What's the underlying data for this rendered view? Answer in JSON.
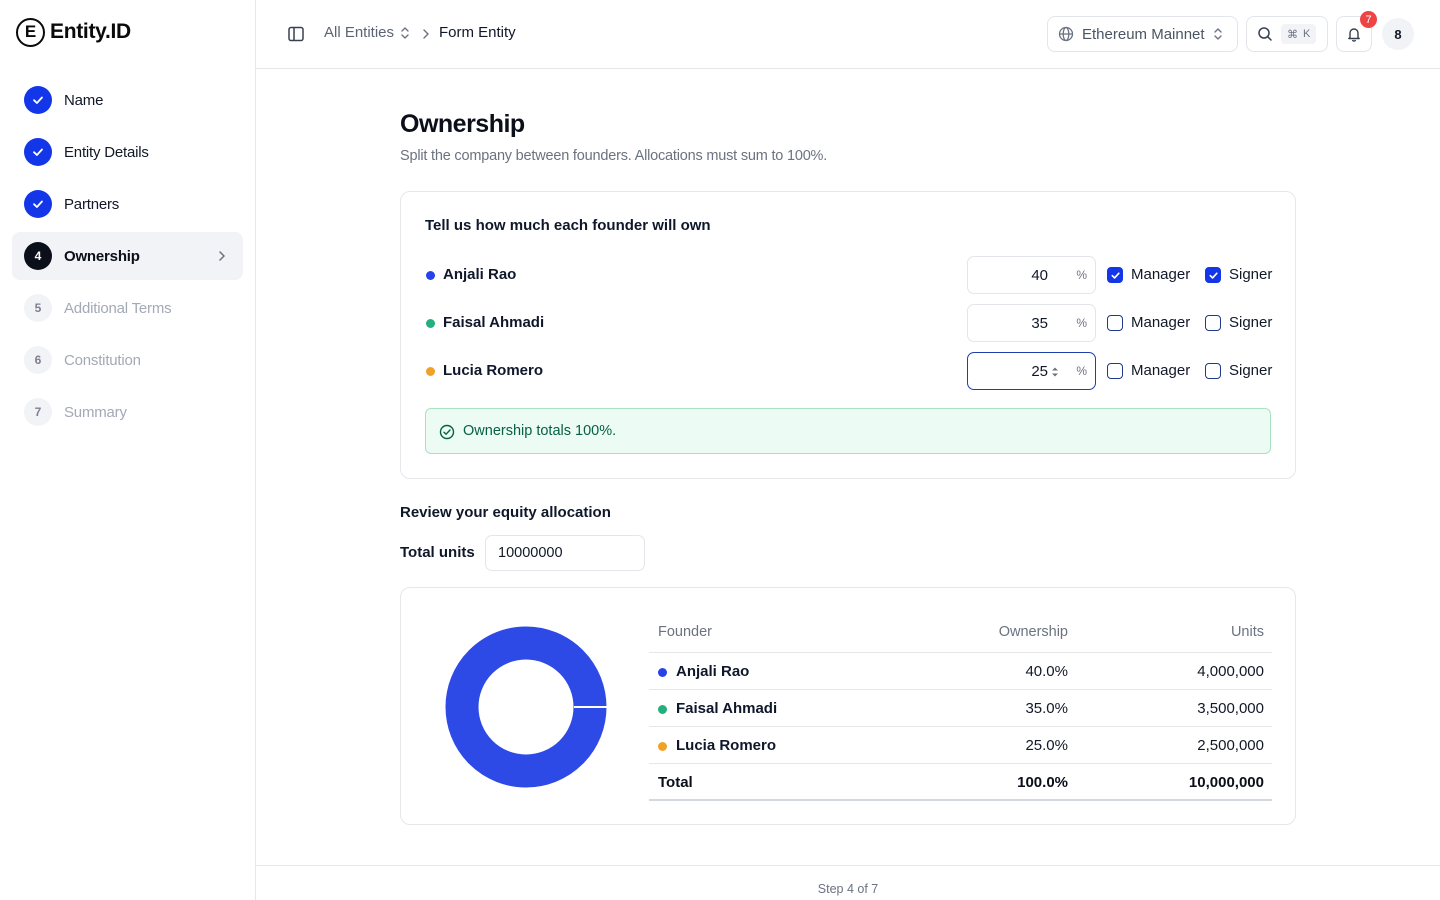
{
  "app": {
    "logo_letter": "E",
    "name": "Entity.ID"
  },
  "sidebar": {
    "steps": [
      {
        "number": "1",
        "label": "Name",
        "state": "done"
      },
      {
        "number": "2",
        "label": "Entity Details",
        "state": "done"
      },
      {
        "number": "3",
        "label": "Partners",
        "state": "done"
      },
      {
        "number": "4",
        "label": "Ownership",
        "state": "active"
      },
      {
        "number": "5",
        "label": "Additional Terms",
        "state": "todo"
      },
      {
        "number": "6",
        "label": "Constitution",
        "state": "todo"
      },
      {
        "number": "7",
        "label": "Summary",
        "state": "todo"
      }
    ]
  },
  "topbar": {
    "breadcrumb_root": "All Entities",
    "breadcrumb_current": "Form Entity",
    "network": "Ethereum Mainnet",
    "search_shortcut_symbol": "⌘",
    "search_shortcut_key": "K",
    "notification_count": "7",
    "avatar_label": "8"
  },
  "main": {
    "title": "Ownership",
    "subtitle": "Split the company between founders. Allocations must sum to 100%.",
    "allocation_card": {
      "title": "Tell us how much each founder will own",
      "percent_sign": "%",
      "manager_label": "Manager",
      "signer_label": "Signer",
      "founders": [
        {
          "name": "Anjali Rao",
          "percent": "40",
          "color": "#2742e8",
          "manager": true,
          "signer": true
        },
        {
          "name": "Faisal Ahmadi",
          "percent": "35",
          "color": "#22b07d",
          "manager": false,
          "signer": false
        },
        {
          "name": "Lucia Romero",
          "percent": "25",
          "color": "#f0a127",
          "manager": false,
          "signer": false
        }
      ],
      "status_message": "Ownership totals 100%."
    },
    "review": {
      "title": "Review your equity allocation",
      "total_units_label": "Total units",
      "total_units_value": "10000000",
      "table": {
        "headers": {
          "founder": "Founder",
          "ownership": "Ownership",
          "units": "Units"
        },
        "rows": [
          {
            "founder": "Anjali Rao",
            "ownership": "40.0%",
            "units": "4,000,000",
            "color": "#2742e8"
          },
          {
            "founder": "Faisal Ahmadi",
            "ownership": "35.0%",
            "units": "3,500,000",
            "color": "#22b07d"
          },
          {
            "founder": "Lucia Romero",
            "ownership": "25.0%",
            "units": "2,500,000",
            "color": "#f0a127"
          }
        ],
        "total": {
          "label": "Total",
          "ownership": "100.0%",
          "units": "10,000,000"
        }
      },
      "donut": {
        "color": "#2d4ae6",
        "share": 1.0
      }
    }
  },
  "footer": {
    "step_text": "Step 4 of 7"
  }
}
